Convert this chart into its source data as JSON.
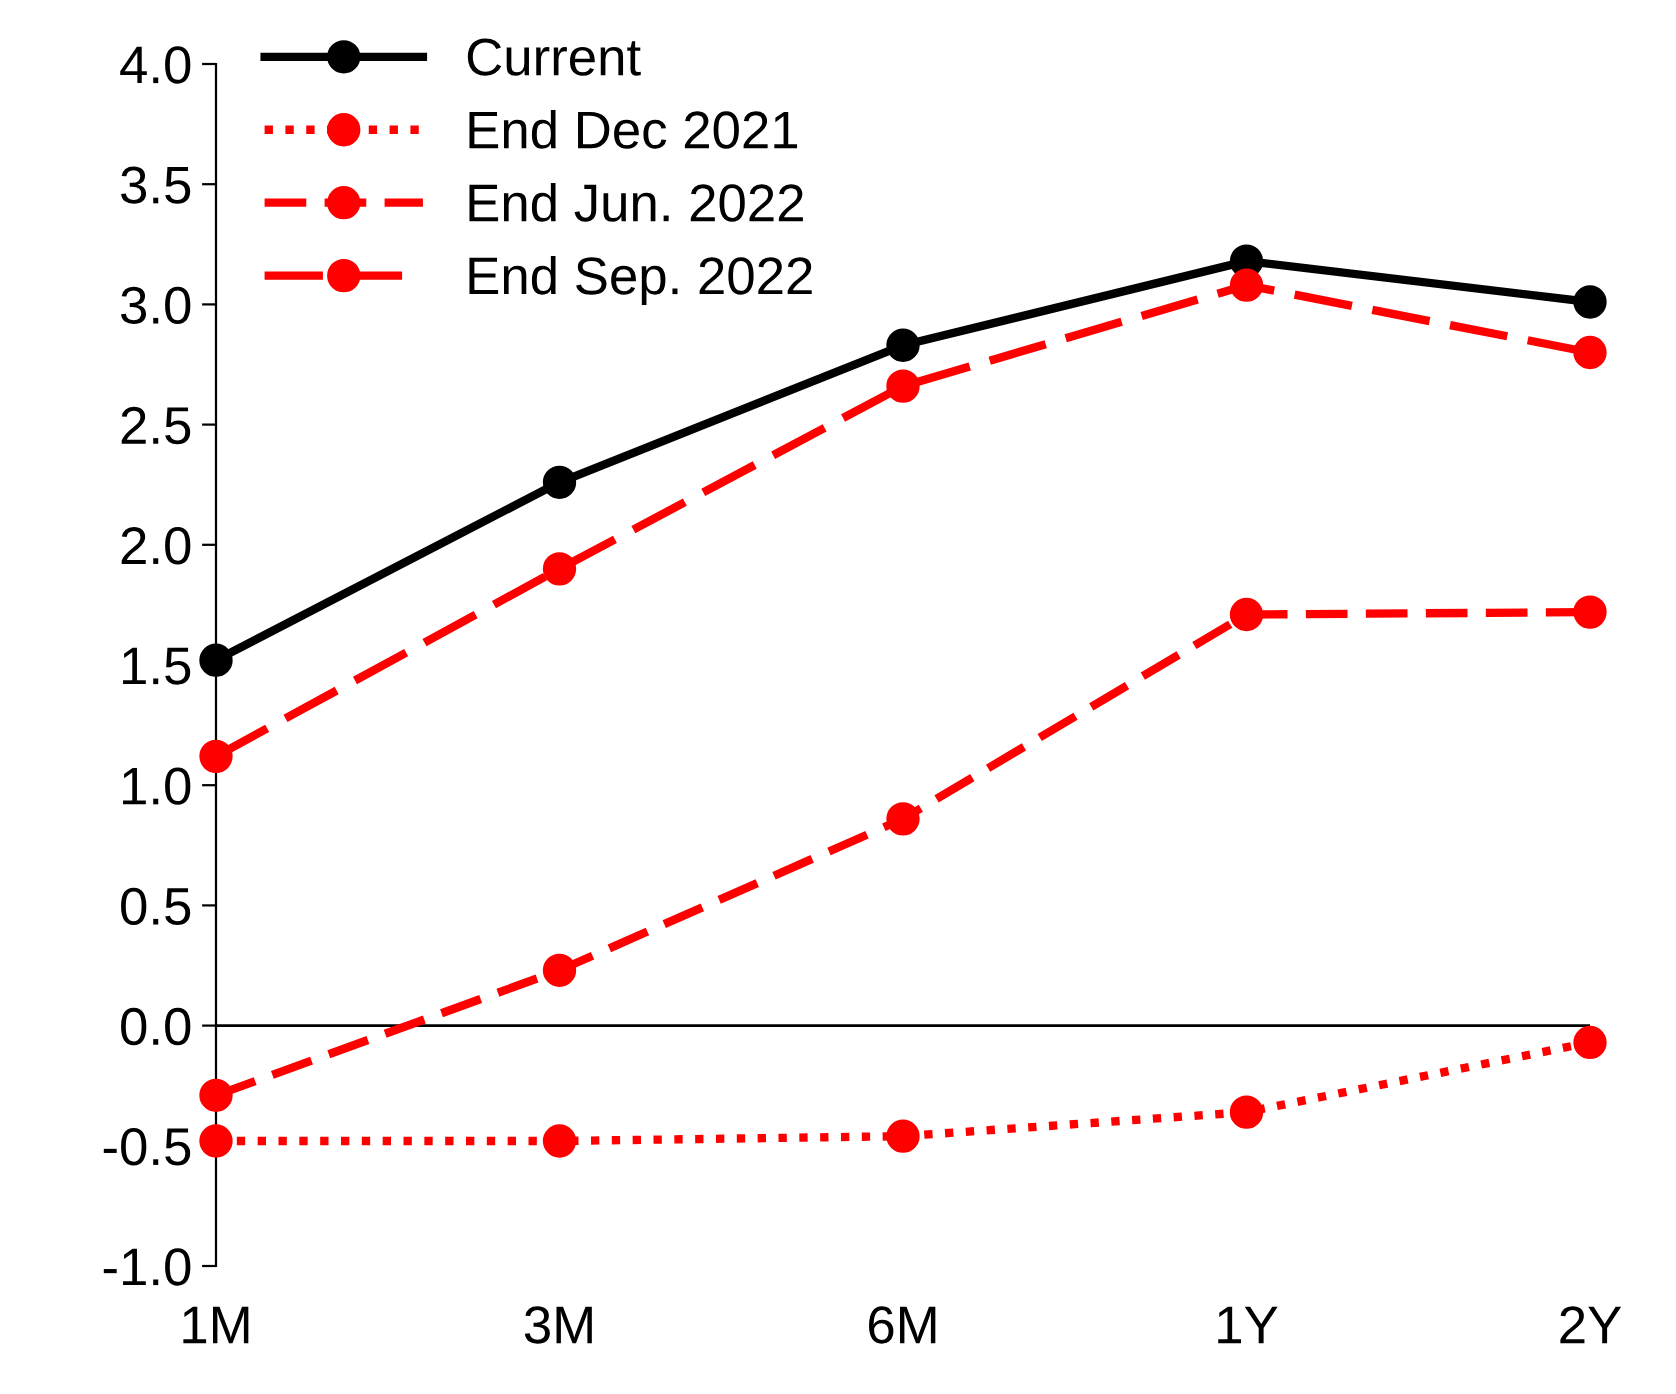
{
  "chart_data": {
    "type": "line",
    "categories": [
      "1M",
      "3M",
      "6M",
      "1Y",
      "2Y"
    ],
    "series": [
      {
        "name": "Current",
        "color": "#000000",
        "line_style": "solid",
        "values": [
          1.52,
          2.26,
          2.83,
          3.18,
          3.01
        ]
      },
      {
        "name": "End Dec 2021",
        "color": "#ff0000",
        "line_style": "dotted",
        "values": [
          -0.48,
          -0.48,
          -0.46,
          -0.36,
          -0.07
        ]
      },
      {
        "name": "End Jun. 2022",
        "color": "#ff0000",
        "line_style": "dashed",
        "values": [
          -0.29,
          0.23,
          0.86,
          1.71,
          1.72
        ]
      },
      {
        "name": "End Sep. 2022",
        "color": "#ff0000",
        "line_style": "dashed",
        "values": [
          1.12,
          1.9,
          2.66,
          3.08,
          2.8
        ]
      }
    ],
    "ylim": [
      -1.0,
      4.0
    ],
    "yticks": [
      {
        "value": -1,
        "label": "-1.0"
      },
      {
        "value": -0.5,
        "label": "-0.5"
      },
      {
        "value": 0,
        "label": "0.0"
      },
      {
        "value": 0.5,
        "label": "0.5"
      },
      {
        "value": 1,
        "label": "1.0"
      },
      {
        "value": 1.5,
        "label": "1.5"
      },
      {
        "value": 2,
        "label": "2.0"
      },
      {
        "value": 2.5,
        "label": "2.5"
      },
      {
        "value": 3,
        "label": "3.0"
      },
      {
        "value": 3.5,
        "label": "3.5"
      },
      {
        "value": 4,
        "label": "4.0"
      }
    ],
    "ref_lines": [
      {
        "axis": "y",
        "value": 0,
        "color": "#000000",
        "line_style": "solid"
      }
    ],
    "marker": "circle",
    "legend": "top left",
    "grid": false
  }
}
